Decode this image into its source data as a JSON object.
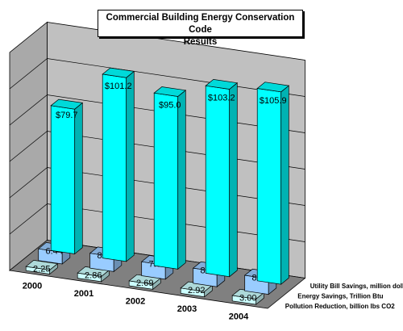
{
  "chart_data": {
    "type": "bar",
    "title_line1": "Commercial Building Energy Conservation Code",
    "title_line2": "Results",
    "categories": [
      "2000",
      "2001",
      "2002",
      "2003",
      "2004"
    ],
    "series": [
      {
        "name": "Utility Bill Savings, million dollars",
        "values": [
          79.7,
          101.2,
          95.0,
          103.2,
          105.9
        ],
        "labels": [
          "$79.7",
          "$101.2",
          "$95.0",
          "$103.2",
          "$105.9"
        ],
        "color": "#00ffff"
      },
      {
        "name": "Energy Savings, Trillion Btu",
        "values": [
          6.44,
          8.18,
          7.68,
          8.34,
          8.56
        ],
        "labels": [
          "6.44",
          "8.18",
          "7.68",
          "8.34",
          "8.56"
        ],
        "color": "#99ccff"
      },
      {
        "name": "Pollution Reduction, billion lbs CO2",
        "values": [
          2.25,
          2.86,
          2.69,
          2.92,
          3.0
        ],
        "labels": [
          "2.25",
          "2.86",
          "2.69",
          "2.92",
          "3.00"
        ],
        "color": "#ccffff"
      }
    ],
    "ylim": [
      0,
      120
    ],
    "grid": true,
    "legend": "series labels along right depth axis",
    "view": "3d-column"
  }
}
